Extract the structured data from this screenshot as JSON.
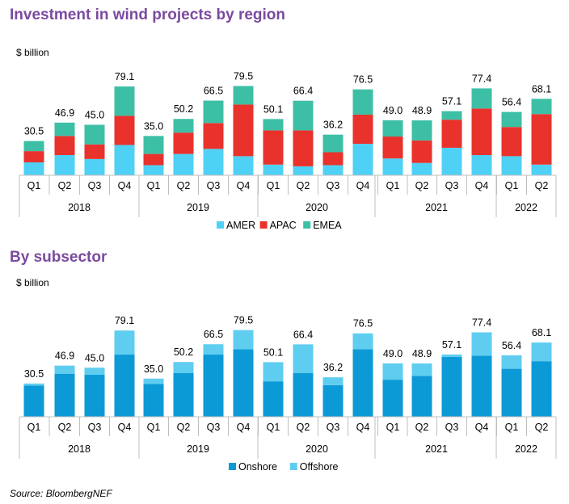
{
  "source": "Source: BloombergNEF",
  "colors": {
    "title": "#7b4a9e",
    "amer": "#4fd1f5",
    "apac": "#e8322b",
    "emea": "#3dbfa6",
    "onshore": "#0c9ad6",
    "offshore": "#5fcdf0"
  },
  "chart_data": [
    {
      "type": "bar",
      "stacked": true,
      "title": "Investment in wind projects by region",
      "ylabel": "$ billion",
      "quarters": [
        "Q1",
        "Q2",
        "Q3",
        "Q4",
        "Q1",
        "Q2",
        "Q3",
        "Q4",
        "Q1",
        "Q2",
        "Q3",
        "Q4",
        "Q1",
        "Q2",
        "Q3",
        "Q4",
        "Q1",
        "Q2"
      ],
      "years": [
        "2018",
        "2019",
        "2020",
        "2021",
        "2022"
      ],
      "totals": [
        "30.5",
        "46.9",
        "45.0",
        "79.1",
        "35.0",
        "50.2",
        "66.5",
        "79.5",
        "50.1",
        "66.4",
        "36.2",
        "76.5",
        "49.0",
        "48.9",
        "57.1",
        "77.4",
        "56.4",
        "68.1"
      ],
      "series": [
        {
          "name": "AMER",
          "color": "#4fd1f5",
          "values": [
            11.5,
            18.0,
            14.5,
            27.0,
            9.0,
            19.0,
            23.5,
            17.0,
            9.5,
            8.0,
            9.0,
            28.0,
            15.0,
            11.0,
            24.5,
            18.0,
            17.0,
            9.5
          ]
        },
        {
          "name": "APAC",
          "color": "#e8322b",
          "values": [
            10.0,
            17.0,
            13.0,
            26.0,
            10.0,
            19.0,
            23.0,
            46.0,
            30.5,
            32.0,
            11.5,
            26.0,
            19.5,
            20.0,
            25.0,
            41.5,
            26.0,
            45.0
          ]
        },
        {
          "name": "EMEA",
          "color": "#3dbfa6",
          "values": [
            9.0,
            11.9,
            17.5,
            26.1,
            16.0,
            12.2,
            20.0,
            16.5,
            10.1,
            26.4,
            15.7,
            22.5,
            14.5,
            17.9,
            7.6,
            17.9,
            13.4,
            13.6
          ]
        }
      ]
    },
    {
      "type": "bar",
      "stacked": true,
      "title": "By subsector",
      "ylabel": "$ billion",
      "quarters": [
        "Q1",
        "Q2",
        "Q3",
        "Q4",
        "Q1",
        "Q2",
        "Q3",
        "Q4",
        "Q1",
        "Q2",
        "Q3",
        "Q4",
        "Q1",
        "Q2",
        "Q3",
        "Q4",
        "Q1",
        "Q2"
      ],
      "years": [
        "2018",
        "2019",
        "2020",
        "2021",
        "2022"
      ],
      "totals": [
        "30.5",
        "46.9",
        "45.0",
        "79.1",
        "35.0",
        "50.2",
        "66.5",
        "79.5",
        "50.1",
        "66.4",
        "36.2",
        "76.5",
        "49.0",
        "48.9",
        "57.1",
        "77.4",
        "56.4",
        "68.1"
      ],
      "series": [
        {
          "name": "Onshore",
          "color": "#0c9ad6",
          "values": [
            28.5,
            39.5,
            38.5,
            57.0,
            30.0,
            40.0,
            57.0,
            62.0,
            32.5,
            40.0,
            29.0,
            62.0,
            34.0,
            37.5,
            55.0,
            56.0,
            44.0,
            51.0
          ]
        },
        {
          "name": "Offshore",
          "color": "#5fcdf0",
          "values": [
            2.0,
            7.4,
            6.5,
            22.1,
            5.0,
            10.2,
            9.5,
            17.5,
            17.6,
            26.4,
            7.2,
            14.5,
            15.0,
            11.4,
            2.1,
            21.4,
            12.4,
            17.1
          ]
        }
      ]
    }
  ]
}
